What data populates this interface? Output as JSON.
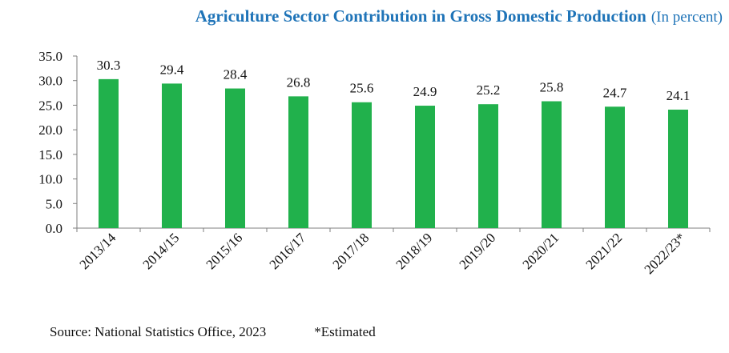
{
  "chart_data": {
    "type": "bar",
    "title": "Agriculture Sector Contribution in Gross Domestic Production",
    "subtitle": "(In percent)",
    "categories": [
      "2013/14",
      "2014/15",
      "2015/16",
      "2016/17",
      "2017/18",
      "2018/19",
      "2019/20",
      "2020/21",
      "2021/22",
      "2022/23*"
    ],
    "values": [
      30.3,
      29.4,
      28.4,
      26.8,
      25.6,
      24.9,
      25.2,
      25.8,
      24.7,
      24.1
    ],
    "data_labels": [
      "30.3",
      "29.4",
      "28.4",
      "26.8",
      "25.6",
      "24.9",
      "25.2",
      "25.8",
      "24.7",
      "24.1"
    ],
    "yticks": [
      "0.0",
      "5.0",
      "10.0",
      "15.0",
      "20.0",
      "25.0",
      "30.0",
      "35.0"
    ],
    "ylim": [
      0,
      35
    ],
    "xlabel": "",
    "ylabel": "",
    "grid": false,
    "legend": "none",
    "bar_color": "#21b14c"
  },
  "footer": {
    "source": "Source: National Statistics Office, 2023",
    "note": "*Estimated"
  }
}
